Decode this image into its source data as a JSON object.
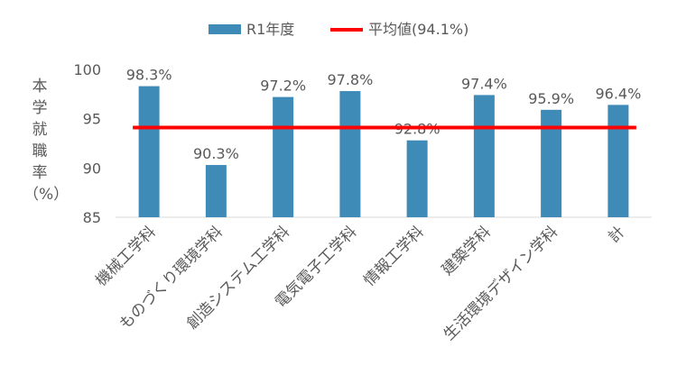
{
  "chart_data": {
    "type": "bar",
    "categories": [
      "機械工学科",
      "ものづくり環境学科",
      "創造システム工学科",
      "電気電子工学科",
      "情報工学科",
      "建築学科",
      "生活環境デザイン学科",
      "計"
    ],
    "series": [
      {
        "name": "R1年度",
        "values": [
          98.3,
          90.3,
          97.2,
          97.8,
          92.8,
          97.4,
          95.9,
          96.4
        ],
        "color": "#3f8bb8"
      }
    ],
    "data_labels": [
      "98.3%",
      "90.3%",
      "97.2%",
      "97.8%",
      "92.8%",
      "97.4%",
      "95.9%",
      "96.4%"
    ],
    "reference_line": {
      "name": "平均値(94.1%)",
      "value": 94.1,
      "color": "#ff0000"
    },
    "ylabel_chars": [
      "本",
      "学",
      "就",
      "職",
      "率",
      "（%）"
    ],
    "ylim": [
      85,
      100
    ],
    "yticks": [
      85,
      90,
      95,
      100
    ],
    "grid": false,
    "legend_position": "top-center"
  }
}
